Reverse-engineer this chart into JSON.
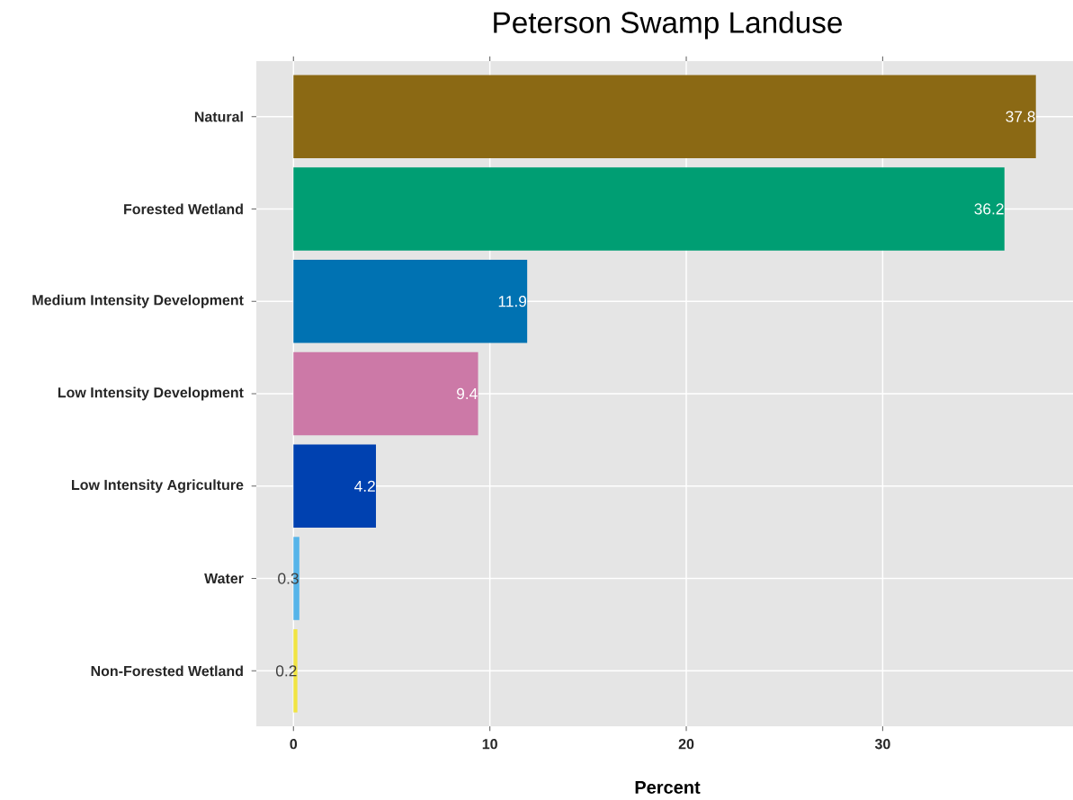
{
  "chart_data": {
    "type": "bar",
    "orientation": "horizontal",
    "title": "Peterson Swamp Landuse",
    "xlabel": "Percent",
    "categories": [
      "Natural",
      "Forested Wetland",
      "Medium Intensity Development",
      "Low Intensity Development",
      "Low Intensity Agriculture",
      "Water",
      "Non-Forested Wetland"
    ],
    "values": [
      37.8,
      36.2,
      11.9,
      9.4,
      4.2,
      0.3,
      0.2
    ],
    "colors": [
      "#8b6914",
      "#009e73",
      "#0072b2",
      "#cc79a7",
      "#0041b0",
      "#56b4e9",
      "#f0e442"
    ],
    "xlim": [
      -1.89,
      39.69
    ],
    "xticks": [
      0,
      10,
      20,
      30
    ],
    "grid": true,
    "data_labels": true
  }
}
